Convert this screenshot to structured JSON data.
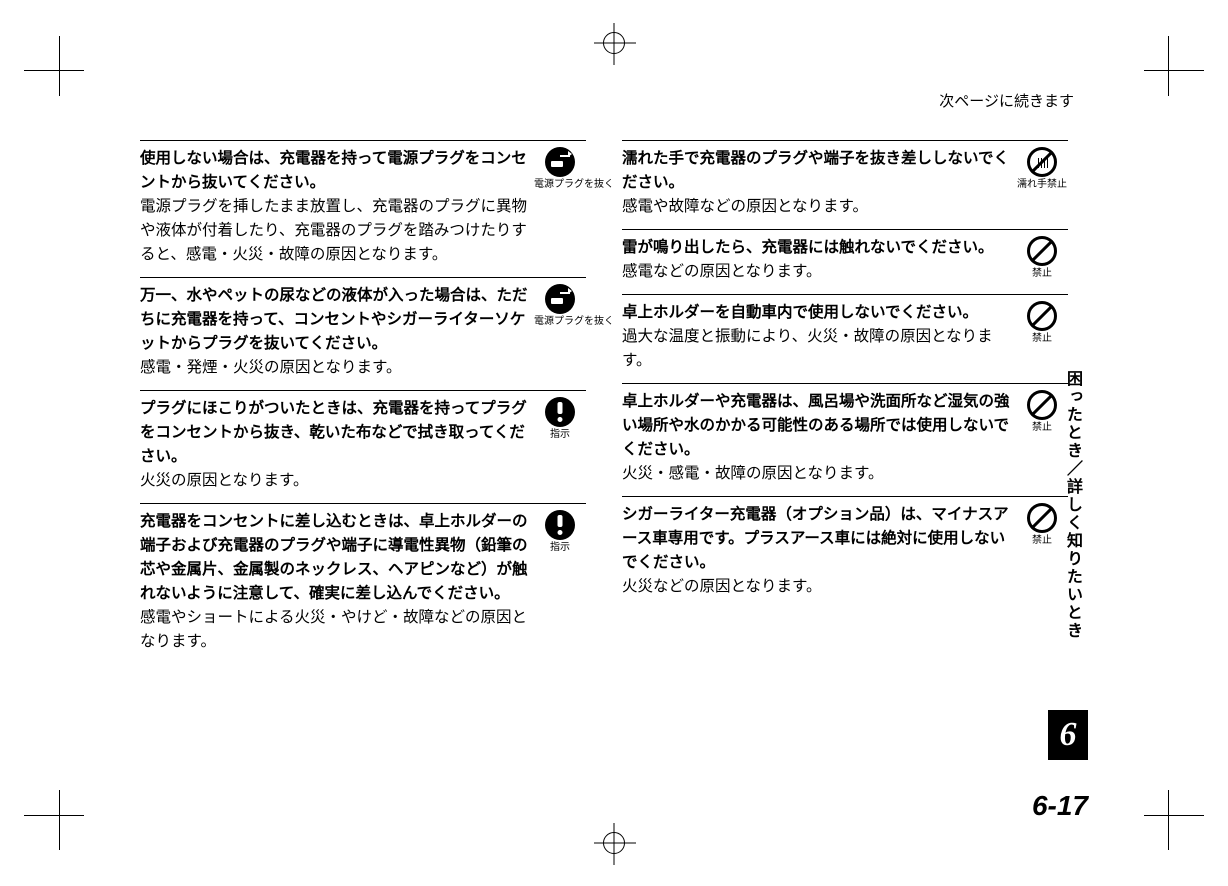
{
  "continuedText": "次ページに続きます",
  "sideTab": "困ったとき／詳しく知りたいとき",
  "chapterNumber": "6",
  "pageNumber": "6-17",
  "icons": {
    "unplug": {
      "label": "電源プラグを抜く"
    },
    "mandatory": {
      "label": "指示"
    },
    "wetHand": {
      "label": "濡れ手禁止"
    },
    "prohibit": {
      "label": "禁止"
    }
  },
  "leftItems": [
    {
      "bold": "使用しない場合は、充電器を持って電源プラグをコンセントから抜いてください。",
      "reg": "電源プラグを挿したまま放置し、充電器のプラグに異物や液体が付着したり、充電器のプラグを踏みつけたりすると、感電・火災・故障の原因となります。",
      "icon": "unplug"
    },
    {
      "bold": "万一、水やペットの尿などの液体が入った場合は、ただちに充電器を持って、コンセントやシガーライターソケットからプラグを抜いてください。",
      "reg": "感電・発煙・火災の原因となります。",
      "icon": "unplug"
    },
    {
      "bold": "プラグにほこりがついたときは、充電器を持ってプラグをコンセントから抜き、乾いた布などで拭き取ってください。",
      "reg": "火災の原因となります。",
      "icon": "mandatory"
    },
    {
      "bold": "充電器をコンセントに差し込むときは、卓上ホルダーの端子および充電器のプラグや端子に導電性異物（鉛筆の芯や金属片、金属製のネックレス、ヘアピンなど）が触れないように注意して、確実に差し込んでください。",
      "reg": "感電やショートによる火災・やけど・故障などの原因となります。",
      "icon": "mandatory"
    }
  ],
  "rightItems": [
    {
      "bold": "濡れた手で充電器のプラグや端子を抜き差ししないでください。",
      "reg": "感電や故障などの原因となります。",
      "icon": "wetHand"
    },
    {
      "bold": "雷が鳴り出したら、充電器には触れないでください。",
      "reg": "感電などの原因となります。",
      "icon": "prohibit"
    },
    {
      "bold": "卓上ホルダーを自動車内で使用しないでください。",
      "reg": "過大な温度と振動により、火災・故障の原因となります。",
      "icon": "prohibit"
    },
    {
      "bold": "卓上ホルダーや充電器は、風呂場や洗面所など湿気の強い場所や水のかかる可能性のある場所では使用しないでください。",
      "reg": "火災・感電・故障の原因となります。",
      "icon": "prohibit"
    },
    {
      "bold": "シガーライター充電器（オプション品）は、マイナスアース車専用です。プラスアース車には絶対に使用しないでください。",
      "reg": "火災などの原因となります。",
      "icon": "prohibit"
    }
  ]
}
